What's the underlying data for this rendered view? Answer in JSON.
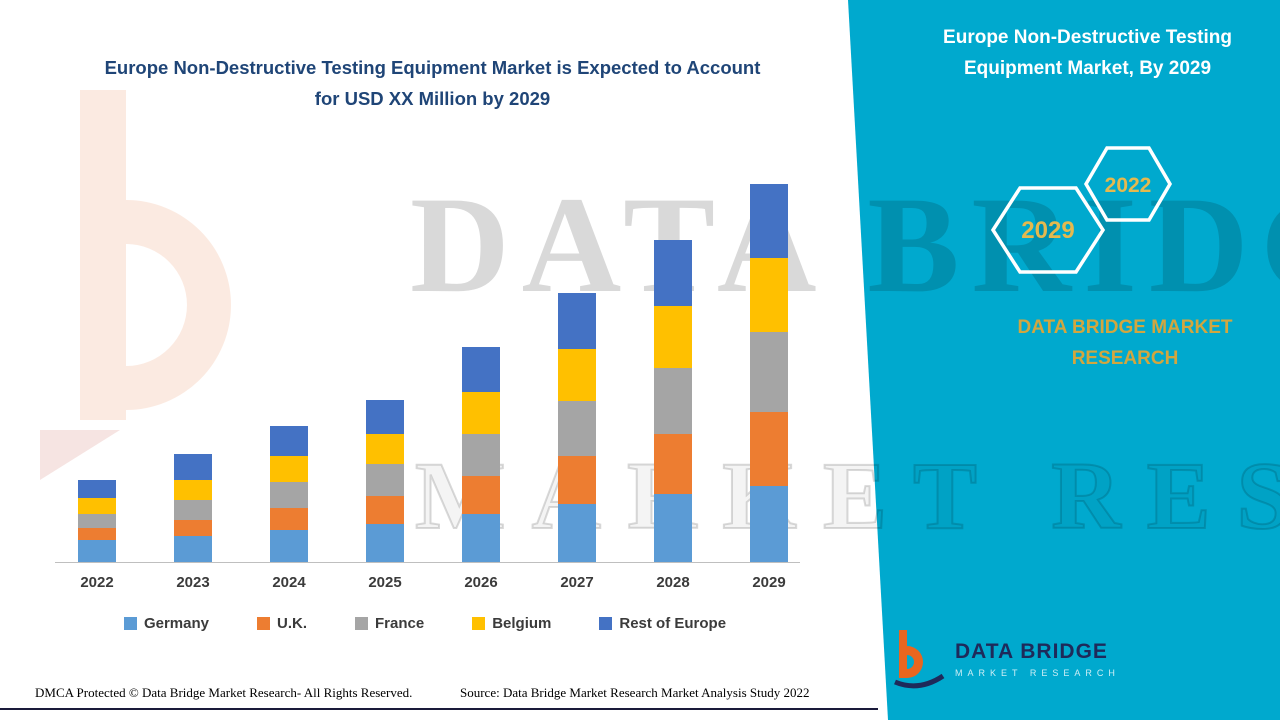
{
  "headline": {
    "line1": "Europe Non-Destructive Testing Equipment Market is Expected to Account",
    "line2": "for USD XX Million by 2029"
  },
  "right_panel": {
    "title_line1": "Europe Non-Destructive Testing",
    "title_line2": "Equipment Market, By 2029",
    "badge_back": "2029",
    "badge_front": "2022",
    "brand_line1": "DATA BRIDGE MARKET",
    "brand_line2": "RESEARCH",
    "accent_color": "#00A9CE",
    "gold_color": "#D2A63F"
  },
  "watermark": {
    "line1": "DATA BRIDGE",
    "line2": "MARKET RESEARCH"
  },
  "logo": {
    "name": "DATA BRIDGE",
    "tagline": "MARKET RESEARCH"
  },
  "footer": {
    "dmca": "DMCA Protected © Data Bridge Market Research- All Rights Reserved.",
    "source": "Source: Data Bridge Market Research Market Analysis Study 2022"
  },
  "chart_data": {
    "type": "bar",
    "stacked": true,
    "title": "Europe Non-Destructive Testing Equipment Market is Expected to Account for USD XX Million by 2029",
    "xlabel": "",
    "ylabel": "",
    "categories": [
      "2022",
      "2023",
      "2024",
      "2025",
      "2026",
      "2027",
      "2028",
      "2029"
    ],
    "series": [
      {
        "name": "Germany",
        "color": "#5B9BD5",
        "values": [
          22,
          26,
          32,
          38,
          48,
          58,
          68,
          76
        ]
      },
      {
        "name": "U.K.",
        "color": "#ED7D31",
        "values": [
          12,
          16,
          22,
          28,
          38,
          48,
          60,
          74
        ]
      },
      {
        "name": "France",
        "color": "#A5A5A5",
        "values": [
          14,
          20,
          26,
          32,
          42,
          55,
          66,
          80
        ]
      },
      {
        "name": "Belgium",
        "color": "#FFC000",
        "values": [
          16,
          20,
          26,
          30,
          42,
          52,
          62,
          74
        ]
      },
      {
        "name": "Rest of Europe",
        "color": "#4472C4",
        "values": [
          18,
          26,
          30,
          34,
          45,
          56,
          66,
          74
        ]
      }
    ],
    "ylim": [
      0,
      400
    ],
    "value_note": "Relative stacked heights; actual USD values shown as XX Million (not labeled)",
    "grid": false,
    "legend_position": "bottom"
  }
}
